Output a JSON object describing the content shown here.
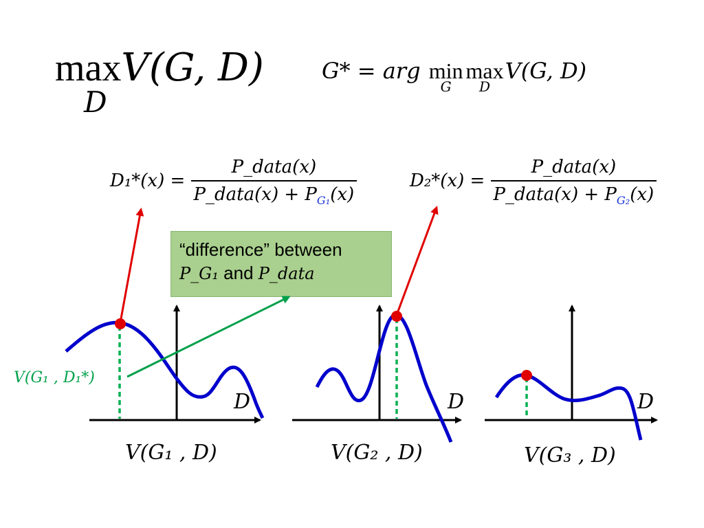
{
  "title": {
    "op": "max",
    "sub": "D",
    "expr": "V(G, D)"
  },
  "g_star": {
    "lhs": "G* = arg",
    "min": "min",
    "min_sub": "G",
    "max": "max",
    "max_sub": "D",
    "expr": "V(G, D)"
  },
  "d1": {
    "lhs": "D₁*(x) =",
    "num": "P_data(x)",
    "den_pre": "P_data(x) + P",
    "den_sub": "G₁",
    "den_post": "(x)"
  },
  "d2": {
    "lhs": "D₂*(x) =",
    "num": "P_data(x)",
    "den_pre": "P_data(x) + P",
    "den_sub": "G₂",
    "den_post": "(x)"
  },
  "callout": {
    "line1": "“difference” between",
    "m1": "P_G₁",
    "and": " and ",
    "m2": "P_data"
  },
  "annotation": {
    "text": "V(G₁ , D₁*)"
  },
  "plots": [
    {
      "axis_label": "D",
      "caption": "V(G₁ , D)"
    },
    {
      "axis_label": "D",
      "caption": "V(G₂ , D)"
    },
    {
      "axis_label": "D",
      "caption": "V(G₃ , D)"
    }
  ],
  "colors": {
    "curve": "#0000cc",
    "marker": "#e00000",
    "arrow_red": "#e00000",
    "arrow_green": "#00a04a",
    "dashed": "#00b050",
    "callout_bg": "#a9d08e",
    "blue_sub": "#1a36d9"
  }
}
